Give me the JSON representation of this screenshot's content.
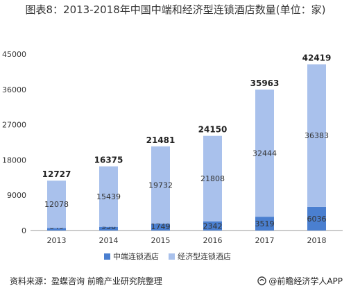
{
  "title": "图表8：2013-2018年中国中端和经济型连锁酒店数量(单位：家)",
  "chart_data": {
    "type": "bar",
    "stacked": true,
    "categories": [
      "2013",
      "2014",
      "2015",
      "2016",
      "2017",
      "2018"
    ],
    "series": [
      {
        "name": "中端连锁酒店",
        "values": [
          649,
          936,
          1749,
          2342,
          3519,
          6036
        ],
        "color": "#4a7fd0"
      },
      {
        "name": "经济型连锁酒店",
        "values": [
          12078,
          15439,
          19732,
          21808,
          32444,
          36383
        ],
        "color": "#a9c1ec"
      }
    ],
    "totals": [
      12727,
      16375,
      21481,
      24150,
      35963,
      42419
    ],
    "y_ticks": [
      "0",
      "9000",
      "18000",
      "27000",
      "36000",
      "45000"
    ],
    "ylim": [
      0,
      45000
    ],
    "legend_position": "bottom",
    "grid": false
  },
  "source": "资料来源：盈蝶咨询 前瞻产业研究院整理",
  "brand": "@前瞻经济学人APP",
  "icons": {
    "brand": "qianzhan-logo-icon"
  }
}
